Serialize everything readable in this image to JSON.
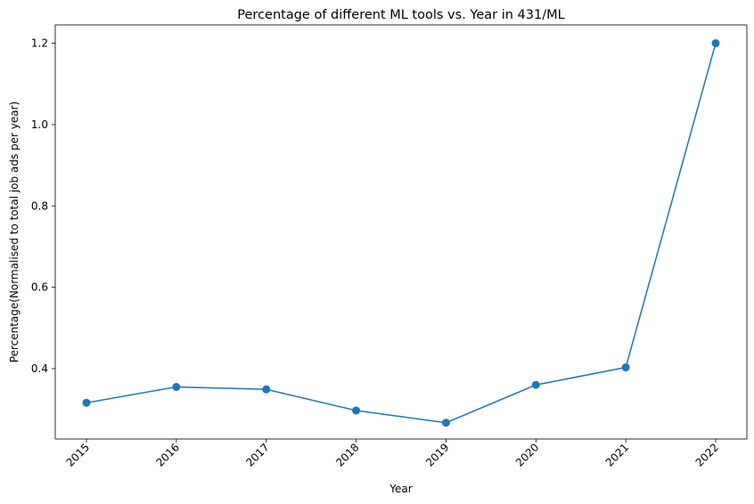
{
  "chart_data": {
    "type": "line",
    "title": "Percentage of different ML tools vs. Year in 431/ML",
    "xlabel": "Year",
    "ylabel": "Percentage(Normalised to total job ads per year)",
    "x": [
      "2015",
      "2016",
      "2017",
      "2018",
      "2019",
      "2020",
      "2021",
      "2022"
    ],
    "series": [
      {
        "values": [
          0.316,
          0.355,
          0.349,
          0.297,
          0.267,
          0.36,
          0.403,
          1.2
        ]
      }
    ],
    "ylim": [
      0.227,
      1.245
    ],
    "yticks": [
      0.4,
      0.6,
      0.8,
      1.0,
      1.2
    ],
    "ytick_labels": [
      "0.4",
      "0.6",
      "0.8",
      "1.0",
      "1.2"
    ],
    "grid": false,
    "marker": "circle",
    "x_tick_rotation": 45
  },
  "colors": {
    "series": "#1f77b4",
    "axes": "#000000"
  }
}
